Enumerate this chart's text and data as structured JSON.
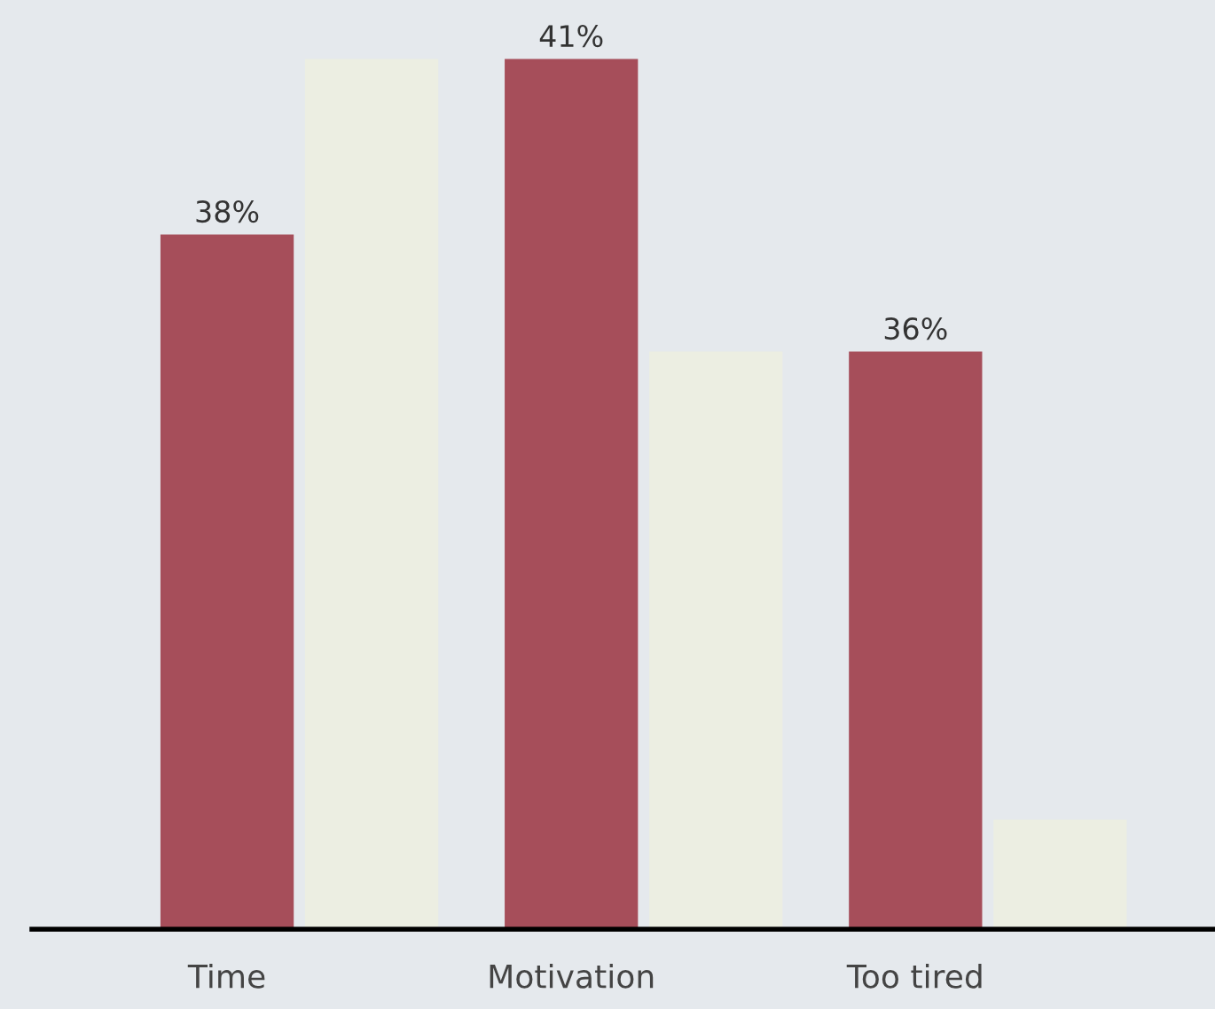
{
  "chart_data": {
    "type": "bar",
    "categories": [
      "Time",
      "Motivation",
      "Too tired"
    ],
    "series": [
      {
        "color": "#a64e5a",
        "values": [
          38,
          41,
          36
        ],
        "value_labels": [
          "38%",
          "41%",
          "36%"
        ]
      },
      {
        "color": "#eceee2",
        "values": [
          41,
          36,
          28
        ]
      }
    ],
    "ylim": [
      26.15,
      42.03
    ],
    "grid": false,
    "legend": false
  }
}
